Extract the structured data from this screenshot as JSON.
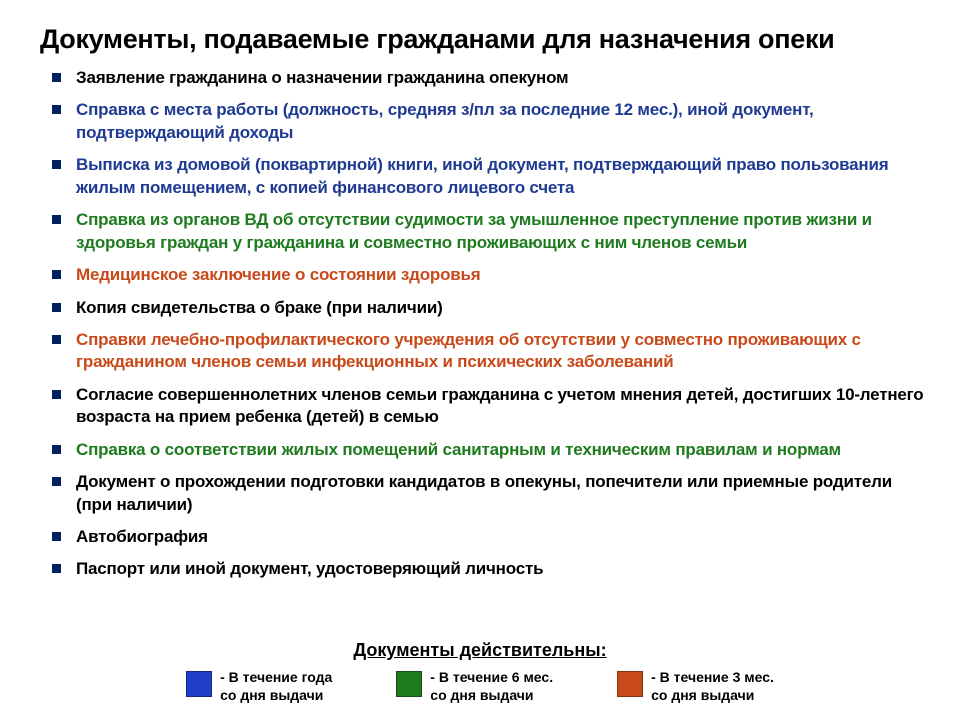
{
  "title": "Документы, подаваемые гражданами для назначения опеки",
  "colors": {
    "bullet": "#002060",
    "text_default": "#000000",
    "text_12mo": "#1f3a93",
    "text_6mo": "#1e7b1e",
    "text_3mo": "#c84a1a",
    "swatch_12mo": "#1f3fc6",
    "swatch_6mo": "#1e7b1e",
    "swatch_3mo": "#c84a1a"
  },
  "items": [
    {
      "text": "Заявление гражданина о назначении гражданина опекуном",
      "color": "#000000"
    },
    {
      "text": "Справка с места работы (должность, средняя з/пл за последние 12 мес.), иной документ, подтверждающий доходы",
      "color": "#1f3a93"
    },
    {
      "text": "Выписка из домовой (поквартирной) книги, иной документ, подтверждающий право пользования жилым помещением, с копией финансового лицевого счета",
      "color": "#1f3a93"
    },
    {
      "text": "Справка из органов ВД об отсутствии судимости за умышленное преступление против жизни и здоровья граждан у гражданина и совместно проживающих с ним членов семьи",
      "color": "#1e7b1e"
    },
    {
      "text": "Медицинское заключение о состоянии здоровья",
      "color": "#c84a1a"
    },
    {
      "text": "Копия свидетельства о браке (при наличии)",
      "color": "#000000"
    },
    {
      "text": "Справки лечебно-профилактического учреждения об отсутствии у совместно проживающих с гражданином членов семьи инфекционных и психических заболеваний",
      "color": "#c84a1a"
    },
    {
      "text": "Согласие совершеннолетних членов семьи гражданина с учетом мнения детей, достигших 10-летнего возраста на прием ребенка (детей) в семью",
      "color": "#000000"
    },
    {
      "text": "Справка о соответствии жилых помещений санитарным и техническим правилам и нормам",
      "color": "#1e7b1e"
    },
    {
      "text": "Документ о прохождении подготовки кандидатов в опекуны, попечители или приемные родители (при наличии)",
      "color": "#000000"
    },
    {
      "text": "Автобиография",
      "color": "#000000"
    },
    {
      "text": "Паспорт или иной документ, удостоверяющий личность",
      "color": "#000000"
    }
  ],
  "legend": {
    "title": "Документы действительны:",
    "entries": [
      {
        "swatch": "#1f3fc6",
        "text": "- В течение года\n   со дня выдачи"
      },
      {
        "swatch": "#1e7b1e",
        "text": "- В течение 6 мес.\n   со дня выдачи"
      },
      {
        "swatch": "#c84a1a",
        "text": "- В течение 3 мес.\n   со дня выдачи"
      }
    ]
  }
}
